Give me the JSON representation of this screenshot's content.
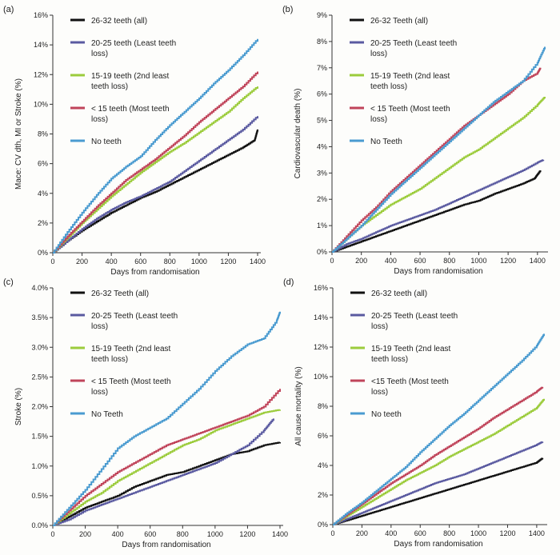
{
  "chart_data": [
    {
      "type": "line",
      "panel_label": "(a)",
      "xlabel": "Days from randomisation",
      "ylabel": "Mace: CV dth, MI or Stroke (%)",
      "xlim": [
        0,
        1400
      ],
      "ylim": [
        0,
        16
      ],
      "xticks": [
        0,
        200,
        400,
        600,
        800,
        1000,
        1200,
        1400
      ],
      "xtick_labels": [
        "0",
        "200",
        "400",
        "600",
        "800",
        "1000",
        "1200",
        "1400"
      ],
      "yticks": [
        0,
        2,
        4,
        6,
        8,
        10,
        12,
        14,
        16
      ],
      "ytick_labels": [
        "0%",
        "2%",
        "4%",
        "6%",
        "8%",
        "10%",
        "12%",
        "14%",
        "16%"
      ],
      "legend_position": "top-left",
      "series": [
        {
          "name": "26-32 teeth (all)",
          "legend_lines": [
            "26-32 teeth (all)"
          ],
          "color": "#111111",
          "x": [
            0,
            100,
            200,
            300,
            400,
            500,
            600,
            700,
            800,
            900,
            1000,
            1100,
            1200,
            1300,
            1380,
            1400
          ],
          "y": [
            0,
            0.8,
            1.5,
            2.1,
            2.7,
            3.2,
            3.7,
            4.1,
            4.6,
            5.1,
            5.6,
            6.1,
            6.6,
            7.1,
            7.6,
            8.3
          ]
        },
        {
          "name": "20-25 teeth (Least teeth loss)",
          "legend_lines": [
            "20-25 teeth (Least teeth",
            "loss)"
          ],
          "color": "#5a5aa0",
          "x": [
            0,
            100,
            200,
            300,
            400,
            500,
            600,
            700,
            800,
            900,
            1000,
            1100,
            1200,
            1300,
            1400
          ],
          "y": [
            0,
            0.8,
            1.6,
            2.3,
            2.9,
            3.4,
            3.8,
            4.3,
            4.8,
            5.5,
            6.2,
            6.9,
            7.6,
            8.3,
            9.2
          ]
        },
        {
          "name": "15-19 teeth (2nd least teeth loss)",
          "legend_lines": [
            "15-19 teeth (2nd least",
            "teeth loss)"
          ],
          "color": "#9ccc3c",
          "x": [
            0,
            100,
            200,
            300,
            400,
            500,
            600,
            700,
            800,
            900,
            1000,
            1100,
            1200,
            1300,
            1400
          ],
          "y": [
            0,
            1.0,
            2.0,
            2.9,
            3.8,
            4.6,
            5.4,
            6.1,
            6.8,
            7.4,
            8.1,
            8.8,
            9.5,
            10.4,
            11.2
          ]
        },
        {
          "name": "< 15 teeth (Most teeth loss)",
          "legend_lines": [
            "< 15 teeth (Most teeth",
            "loss)"
          ],
          "color": "#c0445a",
          "x": [
            0,
            100,
            200,
            300,
            400,
            500,
            600,
            700,
            800,
            900,
            1000,
            1100,
            1200,
            1300,
            1400
          ],
          "y": [
            0,
            1.1,
            2.1,
            3.1,
            4.0,
            4.9,
            5.6,
            6.3,
            7.1,
            7.9,
            8.8,
            9.6,
            10.4,
            11.2,
            12.2
          ]
        },
        {
          "name": "No teeth",
          "legend_lines": [
            "No teeth"
          ],
          "color": "#4a9bd0",
          "x": [
            0,
            100,
            200,
            300,
            400,
            500,
            600,
            700,
            800,
            900,
            1000,
            1100,
            1200,
            1300,
            1400
          ],
          "y": [
            0,
            1.4,
            2.7,
            3.9,
            5.0,
            5.8,
            6.5,
            7.6,
            8.6,
            9.5,
            10.4,
            11.4,
            12.3,
            13.3,
            14.4
          ]
        }
      ]
    },
    {
      "type": "line",
      "panel_label": "(b)",
      "xlabel": "Days from randomisation",
      "ylabel": "Cardiovascular death (%)",
      "xlim": [
        0,
        1450
      ],
      "ylim": [
        0,
        9
      ],
      "xticks": [
        0,
        200,
        400,
        600,
        800,
        1000,
        1200,
        1400
      ],
      "xtick_labels": [
        "0",
        "200",
        "400",
        "600",
        "800",
        "1000",
        "1200",
        "1400"
      ],
      "yticks": [
        0,
        1,
        2,
        3,
        4,
        5,
        6,
        7,
        8,
        9
      ],
      "ytick_labels": [
        "0%",
        "1%",
        "2%",
        "3%",
        "4%",
        "5%",
        "6%",
        "7%",
        "8%",
        "9%"
      ],
      "legend_position": "top-left",
      "series": [
        {
          "name": "26-32 Teeth (all)",
          "legend_lines": [
            "26-32 Teeth (all)"
          ],
          "color": "#111111",
          "x": [
            0,
            100,
            200,
            300,
            400,
            500,
            600,
            700,
            800,
            900,
            1000,
            1100,
            1200,
            1300,
            1380,
            1420
          ],
          "y": [
            0,
            0.2,
            0.4,
            0.6,
            0.8,
            1.0,
            1.2,
            1.4,
            1.6,
            1.8,
            1.95,
            2.2,
            2.4,
            2.6,
            2.8,
            3.1
          ]
        },
        {
          "name": "20-25 Teeth (Least teeth loss)",
          "legend_lines": [
            "20-25 Teeth (Least teeth",
            "loss)"
          ],
          "color": "#5a5aa0",
          "x": [
            0,
            100,
            200,
            300,
            400,
            500,
            600,
            700,
            800,
            900,
            1000,
            1100,
            1200,
            1300,
            1400,
            1440
          ],
          "y": [
            0,
            0.3,
            0.5,
            0.75,
            1.0,
            1.2,
            1.4,
            1.6,
            1.85,
            2.1,
            2.35,
            2.6,
            2.85,
            3.1,
            3.4,
            3.5
          ]
        },
        {
          "name": "15-19 Teeth (2nd least teeth loss)",
          "legend_lines": [
            "15-19 Teeth (2nd least",
            "teeth loss)"
          ],
          "color": "#9ccc3c",
          "x": [
            0,
            100,
            200,
            300,
            400,
            500,
            600,
            700,
            800,
            900,
            1000,
            1100,
            1200,
            1300,
            1400,
            1450
          ],
          "y": [
            0,
            0.5,
            1.0,
            1.4,
            1.8,
            2.1,
            2.4,
            2.8,
            3.2,
            3.6,
            3.9,
            4.3,
            4.7,
            5.1,
            5.6,
            5.9
          ]
        },
        {
          "name": "< 15 Teeth (Most teeth loss)",
          "legend_lines": [
            "< 15 Teeth (Most teeth",
            "loss)"
          ],
          "color": "#c0445a",
          "x": [
            0,
            100,
            200,
            300,
            400,
            500,
            600,
            700,
            800,
            900,
            1000,
            1100,
            1200,
            1300,
            1400,
            1420
          ],
          "y": [
            0,
            0.6,
            1.2,
            1.7,
            2.3,
            2.8,
            3.3,
            3.8,
            4.3,
            4.8,
            5.2,
            5.6,
            6.0,
            6.5,
            6.8,
            7.0
          ]
        },
        {
          "name": "No Teeth",
          "legend_lines": [
            "No Teeth"
          ],
          "color": "#4a9bd0",
          "x": [
            0,
            100,
            200,
            300,
            400,
            500,
            600,
            700,
            800,
            900,
            1000,
            1100,
            1200,
            1300,
            1400,
            1450
          ],
          "y": [
            0,
            0.5,
            1.0,
            1.6,
            2.2,
            2.7,
            3.2,
            3.7,
            4.2,
            4.7,
            5.2,
            5.7,
            6.1,
            6.5,
            7.2,
            7.8
          ]
        }
      ]
    },
    {
      "type": "line",
      "panel_label": "(c)",
      "xlabel": "Days from randomisation",
      "ylabel": "Stroke (%)",
      "xlim": [
        0,
        1400
      ],
      "ylim": [
        0,
        4
      ],
      "xticks": [
        0,
        200,
        400,
        600,
        800,
        1000,
        1200,
        1400
      ],
      "xtick_labels": [
        "0",
        "200",
        "400",
        "600",
        "800",
        "1000",
        "1200",
        "1400"
      ],
      "yticks": [
        0,
        0.5,
        1,
        1.5,
        2,
        2.5,
        3,
        3.5,
        4
      ],
      "ytick_labels": [
        "0.0%",
        "0.5%",
        "1.0%",
        "1.5%",
        "2.0%",
        "2.5%",
        "3.0%",
        "3.5%",
        "4.0%"
      ],
      "legend_position": "top-left",
      "series": [
        {
          "name": "26-32 Teeth (all)",
          "legend_lines": [
            "26-32 Teeth (all)"
          ],
          "color": "#111111",
          "x": [
            0,
            100,
            200,
            300,
            400,
            500,
            600,
            700,
            800,
            900,
            1000,
            1100,
            1200,
            1300,
            1400
          ],
          "y": [
            0,
            0.15,
            0.3,
            0.4,
            0.5,
            0.65,
            0.75,
            0.85,
            0.9,
            1.0,
            1.1,
            1.2,
            1.25,
            1.35,
            1.4
          ]
        },
        {
          "name": "20-25 Teeth (Least teeth loss)",
          "legend_lines": [
            "20-25 Teeth (Least teeth",
            "loss)"
          ],
          "color": "#5a5aa0",
          "x": [
            0,
            100,
            200,
            300,
            400,
            500,
            600,
            700,
            800,
            900,
            1000,
            1100,
            1200,
            1300,
            1360
          ],
          "y": [
            0,
            0.1,
            0.25,
            0.35,
            0.45,
            0.55,
            0.65,
            0.75,
            0.85,
            0.95,
            1.05,
            1.2,
            1.35,
            1.6,
            1.8
          ]
        },
        {
          "name": "15-19 Teeth (2nd least teeth loss)",
          "legend_lines": [
            "15-19 Teeth (2nd least",
            "teeth loss)"
          ],
          "color": "#9ccc3c",
          "x": [
            0,
            100,
            200,
            300,
            400,
            500,
            600,
            700,
            800,
            900,
            1000,
            1100,
            1200,
            1300,
            1400
          ],
          "y": [
            0,
            0.2,
            0.4,
            0.55,
            0.75,
            0.9,
            1.05,
            1.2,
            1.35,
            1.45,
            1.6,
            1.7,
            1.8,
            1.9,
            1.95
          ]
        },
        {
          "name": "< 15 Teeth (Most teeth loss)",
          "legend_lines": [
            "< 15 Teeth (Most teeth",
            "loss)"
          ],
          "color": "#c0445a",
          "x": [
            0,
            100,
            200,
            300,
            400,
            500,
            600,
            700,
            800,
            900,
            1000,
            1100,
            1200,
            1300,
            1400
          ],
          "y": [
            0,
            0.25,
            0.5,
            0.7,
            0.9,
            1.05,
            1.2,
            1.35,
            1.45,
            1.55,
            1.65,
            1.75,
            1.85,
            2.0,
            2.3
          ]
        },
        {
          "name": "No Teeth",
          "legend_lines": [
            "No Teeth"
          ],
          "color": "#4a9bd0",
          "x": [
            0,
            100,
            200,
            300,
            400,
            500,
            600,
            700,
            800,
            900,
            1000,
            1100,
            1200,
            1300,
            1380,
            1400
          ],
          "y": [
            0,
            0.3,
            0.6,
            0.95,
            1.3,
            1.5,
            1.65,
            1.8,
            2.05,
            2.3,
            2.6,
            2.85,
            3.05,
            3.15,
            3.45,
            3.6
          ]
        }
      ]
    },
    {
      "type": "line",
      "panel_label": "(d)",
      "xlabel": "Days from randomisation",
      "ylabel": "All cause mortality (%)",
      "xlim": [
        0,
        1450
      ],
      "ylim": [
        0,
        16
      ],
      "xticks": [
        0,
        200,
        400,
        600,
        800,
        1000,
        1200,
        1400
      ],
      "xtick_labels": [
        "0",
        "200",
        "400",
        "600",
        "800",
        "1000",
        "1200",
        "1400"
      ],
      "yticks": [
        0,
        2,
        4,
        6,
        8,
        10,
        12,
        14,
        16
      ],
      "ytick_labels": [
        "0%",
        "2%",
        "4%",
        "6%",
        "8%",
        "10%",
        "12%",
        "14%",
        "16%"
      ],
      "legend_position": "top-left",
      "series": [
        {
          "name": "26-32 teeth (all)",
          "legend_lines": [
            "26-32 teeth (all)"
          ],
          "color": "#111111",
          "x": [
            0,
            100,
            200,
            300,
            400,
            500,
            600,
            700,
            800,
            900,
            1000,
            1100,
            1200,
            1300,
            1400,
            1440
          ],
          "y": [
            0,
            0.3,
            0.6,
            0.9,
            1.2,
            1.5,
            1.8,
            2.1,
            2.4,
            2.7,
            3.0,
            3.3,
            3.6,
            3.9,
            4.2,
            4.5
          ]
        },
        {
          "name": "20-25 Teeth (Least teeth loss)",
          "legend_lines": [
            "20-25 Teeth (Least teeth",
            "loss)"
          ],
          "color": "#5a5aa0",
          "x": [
            0,
            100,
            200,
            300,
            400,
            500,
            600,
            700,
            800,
            900,
            1000,
            1100,
            1200,
            1300,
            1400,
            1440
          ],
          "y": [
            0,
            0.4,
            0.8,
            1.2,
            1.6,
            2.0,
            2.4,
            2.8,
            3.1,
            3.4,
            3.8,
            4.2,
            4.6,
            5.0,
            5.4,
            5.6
          ]
        },
        {
          "name": "15-19 Teeth (2nd least teeth loss)",
          "legend_lines": [
            "15-19 Teeth (2nd least",
            "teeth loss)"
          ],
          "color": "#9ccc3c",
          "x": [
            0,
            100,
            200,
            300,
            400,
            500,
            600,
            700,
            800,
            900,
            1000,
            1100,
            1200,
            1300,
            1400,
            1450
          ],
          "y": [
            0,
            0.6,
            1.2,
            1.8,
            2.4,
            3.0,
            3.5,
            4.0,
            4.6,
            5.1,
            5.6,
            6.1,
            6.7,
            7.3,
            7.9,
            8.5
          ]
        },
        {
          "name": "<15 Teeth (Most teeth loss)",
          "legend_lines": [
            "<15 Teeth (Most teeth",
            "loss)"
          ],
          "color": "#c0445a",
          "x": [
            0,
            100,
            200,
            300,
            400,
            500,
            600,
            700,
            800,
            900,
            1000,
            1100,
            1200,
            1300,
            1400,
            1440
          ],
          "y": [
            0,
            0.7,
            1.4,
            2.1,
            2.8,
            3.4,
            4.0,
            4.7,
            5.3,
            5.9,
            6.5,
            7.2,
            7.8,
            8.4,
            9.0,
            9.3
          ]
        },
        {
          "name": "No teeth",
          "legend_lines": [
            "No teeth"
          ],
          "color": "#4a9bd0",
          "x": [
            0,
            100,
            200,
            300,
            400,
            500,
            600,
            700,
            800,
            900,
            1000,
            1100,
            1200,
            1300,
            1400,
            1450
          ],
          "y": [
            0,
            0.8,
            1.5,
            2.3,
            3.1,
            3.9,
            4.9,
            5.8,
            6.7,
            7.5,
            8.4,
            9.3,
            10.2,
            11.1,
            12.1,
            12.9
          ]
        }
      ]
    }
  ]
}
